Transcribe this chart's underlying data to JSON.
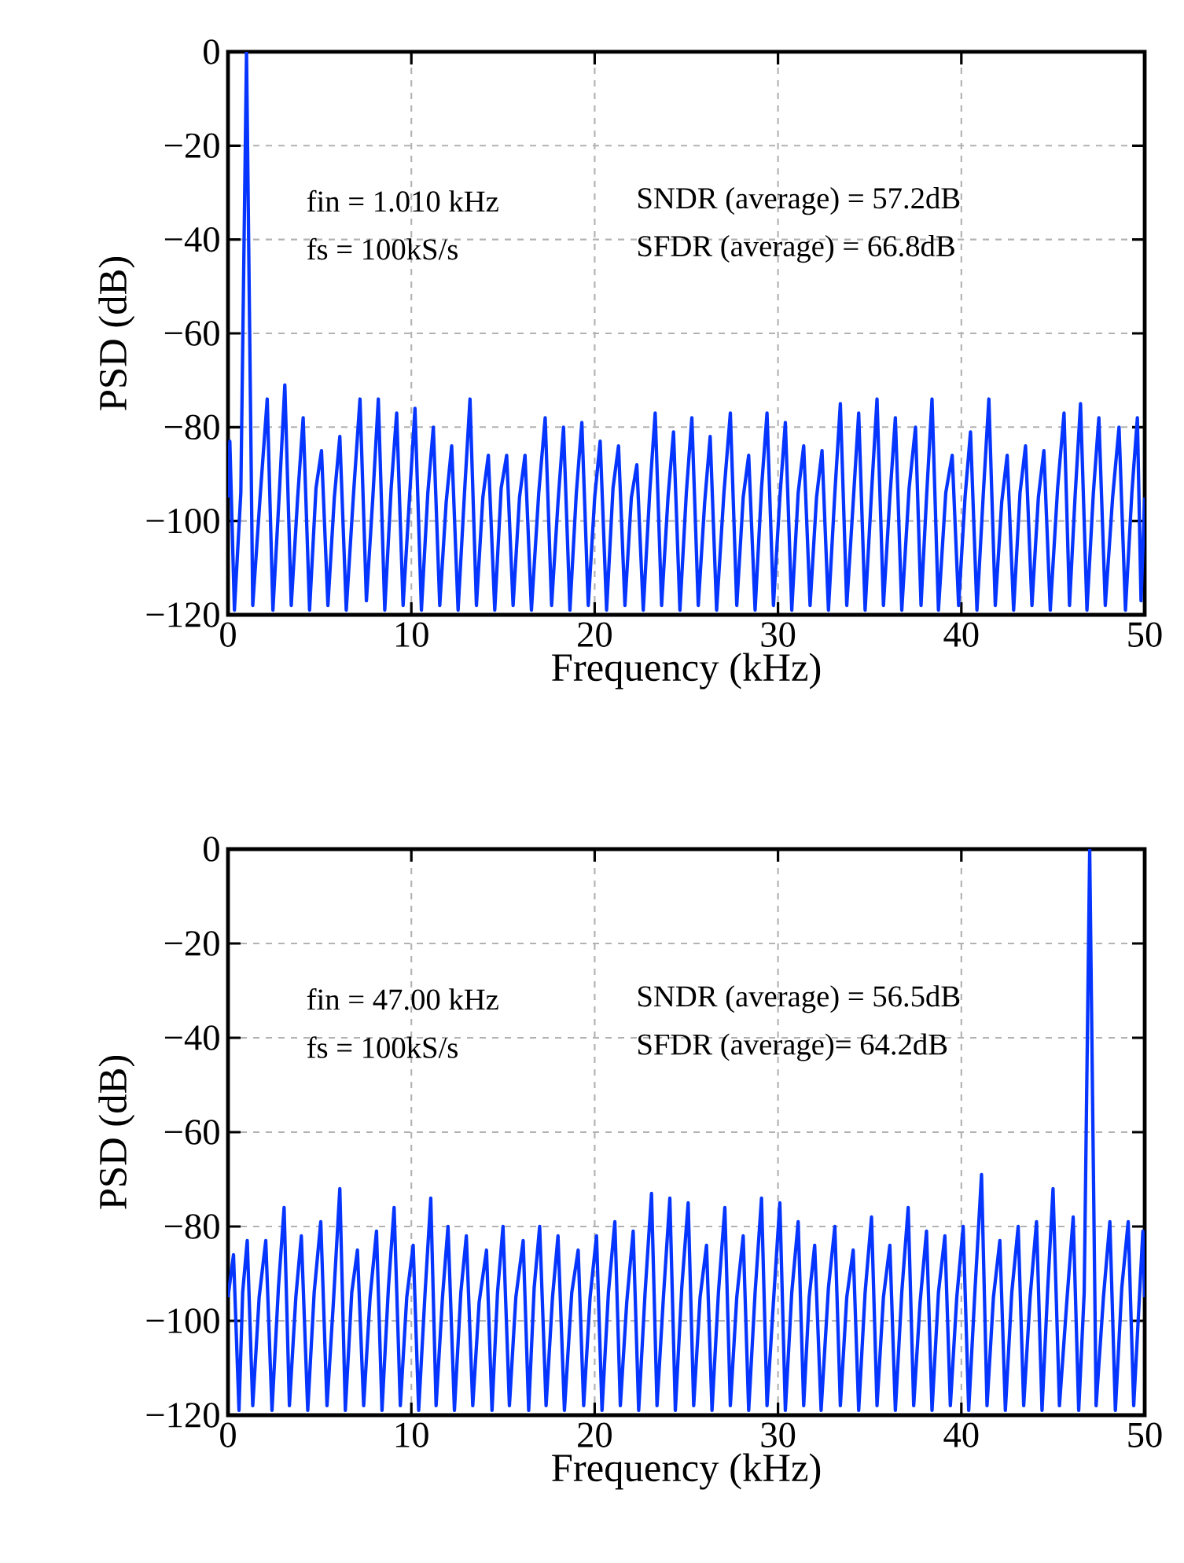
{
  "chart_data": [
    {
      "type": "line",
      "xlabel": "Frequency (kHz)",
      "ylabel": "PSD (dB)",
      "color": "#0535ff",
      "grid": true,
      "xlim": [
        0,
        50
      ],
      "ylim": [
        -120,
        0
      ],
      "xticks": [
        0,
        10,
        20,
        30,
        40,
        50
      ],
      "yticks": [
        {
          "value": -120,
          "label": "−120"
        },
        {
          "value": -100,
          "label": "−100"
        },
        {
          "value": -80,
          "label": "−80"
        },
        {
          "value": -60,
          "label": "−60"
        },
        {
          "value": -40,
          "label": "−40"
        },
        {
          "value": -20,
          "label": "−20"
        },
        0
      ],
      "annotations": [
        "fin = 1.010 kHz",
        "SNDR (average) = 57.2dB",
        "fs  = 100kS/s",
        "SFDR (average) = 66.8dB"
      ],
      "x": [
        0,
        0.1,
        0.35,
        0.7,
        1.01,
        1.35,
        1.75,
        2.14,
        2.45,
        2.8,
        3.1,
        3.45,
        3.8,
        4.1,
        4.45,
        4.8,
        5.1,
        5.45,
        5.8,
        6.1,
        6.45,
        6.85,
        7.2,
        7.55,
        7.9,
        8.2,
        8.55,
        8.9,
        9.2,
        9.55,
        9.9,
        10.2,
        10.55,
        10.9,
        11.2,
        11.55,
        11.9,
        12.2,
        12.55,
        12.9,
        13.2,
        13.55,
        13.9,
        14.2,
        14.55,
        14.9,
        15.2,
        15.55,
        15.9,
        16.2,
        16.55,
        16.95,
        17.3,
        17.65,
        18.0,
        18.3,
        18.65,
        19.0,
        19.3,
        19.65,
        20.0,
        20.3,
        20.65,
        21.0,
        21.3,
        21.65,
        22.0,
        22.3,
        22.65,
        23.0,
        23.3,
        23.65,
        24.0,
        24.3,
        24.65,
        25.0,
        25.3,
        25.65,
        26.0,
        26.3,
        26.65,
        27.05,
        27.4,
        27.75,
        28.1,
        28.4,
        28.75,
        29.1,
        29.4,
        29.75,
        30.1,
        30.4,
        30.75,
        31.1,
        31.4,
        31.75,
        32.1,
        32.4,
        32.75,
        33.1,
        33.4,
        33.75,
        34.1,
        34.4,
        34.75,
        35.1,
        35.4,
        35.75,
        36.1,
        36.4,
        36.75,
        37.15,
        37.5,
        37.8,
        38.1,
        38.4,
        38.75,
        39.15,
        39.5,
        39.85,
        40.2,
        40.5,
        40.85,
        41.2,
        41.5,
        41.85,
        42.2,
        42.5,
        42.85,
        43.2,
        43.5,
        43.85,
        44.2,
        44.5,
        44.85,
        45.25,
        45.6,
        45.9,
        46.2,
        46.5,
        46.85,
        47.2,
        47.5,
        47.85,
        48.25,
        48.6,
        48.95,
        49.3,
        49.6,
        49.8,
        50
      ],
      "values": [
        -95,
        -83,
        -119,
        -94,
        0,
        -118,
        -95,
        -74,
        -119,
        -94,
        -71,
        -118,
        -95,
        -78,
        -119,
        -93,
        -85,
        -118,
        -95,
        -82,
        -119,
        -94,
        -74,
        -117,
        -95,
        -74,
        -119,
        -93,
        -77,
        -118,
        -95,
        -76,
        -119,
        -94,
        -80,
        -118,
        -96,
        -84,
        -119,
        -94,
        -74,
        -118,
        -95,
        -86,
        -119,
        -93,
        -86,
        -118,
        -95,
        -86,
        -119,
        -94,
        -78,
        -118,
        -96,
        -80,
        -119,
        -94,
        -79,
        -118,
        -95,
        -83,
        -119,
        -93,
        -84,
        -118,
        -95,
        -88,
        -119,
        -94,
        -77,
        -118,
        -95,
        -81,
        -119,
        -94,
        -78,
        -118,
        -96,
        -82,
        -119,
        -94,
        -77,
        -118,
        -95,
        -86,
        -119,
        -93,
        -77,
        -118,
        -95,
        -79,
        -119,
        -94,
        -84,
        -118,
        -95,
        -85,
        -119,
        -94,
        -75,
        -118,
        -96,
        -77,
        -119,
        -94,
        -74,
        -118,
        -95,
        -78,
        -119,
        -93,
        -80,
        -118,
        -95,
        -74,
        -119,
        -94,
        -86,
        -118,
        -95,
        -81,
        -119,
        -94,
        -74,
        -118,
        -96,
        -86,
        -119,
        -94,
        -84,
        -118,
        -95,
        -85,
        -119,
        -93,
        -77,
        -118,
        -95,
        -75,
        -119,
        -94,
        -78,
        -118,
        -95,
        -80,
        -119,
        -94,
        -78,
        -117,
        -95
      ]
    },
    {
      "type": "line",
      "xlabel": "Frequency (kHz)",
      "ylabel": "PSD (dB)",
      "color": "#0535ff",
      "grid": true,
      "xlim": [
        0,
        50
      ],
      "ylim": [
        -120,
        0
      ],
      "xticks": [
        0,
        10,
        20,
        30,
        40,
        50
      ],
      "yticks": [
        {
          "value": -120,
          "label": "−120"
        },
        {
          "value": -100,
          "label": "−100"
        },
        {
          "value": -80,
          "label": "−80"
        },
        {
          "value": -60,
          "label": "−60"
        },
        {
          "value": -40,
          "label": "−40"
        },
        {
          "value": -20,
          "label": "−20"
        },
        0
      ],
      "annotations": [
        "fin = 47.00 kHz",
        "SNDR (average) = 56.5dB",
        "fs  = 100kS/s",
        "SFDR (average)= 64.2dB"
      ],
      "x": [
        0,
        0.3,
        0.6,
        0.8,
        1.05,
        1.35,
        1.7,
        2.06,
        2.4,
        2.75,
        3.06,
        3.35,
        3.7,
        4.0,
        4.35,
        4.7,
        5.06,
        5.4,
        5.75,
        6.1,
        6.4,
        6.75,
        7.06,
        7.4,
        7.75,
        8.1,
        8.4,
        8.75,
        9.06,
        9.4,
        9.75,
        10.1,
        10.4,
        10.75,
        11.06,
        11.35,
        11.7,
        12.0,
        12.35,
        12.7,
        13.0,
        13.35,
        13.7,
        14.1,
        14.4,
        14.7,
        15.0,
        15.35,
        15.7,
        16.1,
        16.4,
        16.7,
        17.0,
        17.35,
        17.7,
        18.0,
        18.35,
        18.75,
        19.1,
        19.4,
        19.75,
        20.1,
        20.4,
        20.75,
        21.1,
        21.4,
        21.75,
        22.1,
        22.4,
        22.75,
        23.1,
        23.4,
        23.75,
        24.1,
        24.4,
        24.75,
        25.1,
        25.4,
        25.75,
        26.1,
        26.4,
        26.75,
        27.1,
        27.4,
        27.75,
        28.1,
        28.4,
        28.75,
        29.1,
        29.4,
        29.75,
        30.1,
        30.4,
        30.75,
        31.1,
        31.4,
        31.7,
        32.0,
        32.35,
        32.75,
        33.1,
        33.4,
        33.75,
        34.1,
        34.4,
        34.75,
        35.1,
        35.4,
        35.75,
        36.1,
        36.4,
        36.75,
        37.1,
        37.4,
        37.75,
        38.1,
        38.4,
        38.75,
        39.1,
        39.4,
        39.75,
        40.1,
        40.4,
        40.75,
        41.1,
        41.4,
        41.75,
        42.1,
        42.4,
        42.75,
        43.1,
        43.4,
        43.75,
        44.1,
        44.4,
        44.7,
        45.0,
        45.35,
        45.75,
        46.1,
        46.4,
        46.7,
        47.0,
        47.35,
        47.75,
        48.1,
        48.4,
        48.75,
        49.1,
        49.4,
        49.9,
        50
      ],
      "values": [
        -95,
        -86,
        -119,
        -94,
        -83,
        -118,
        -95,
        -83,
        -119,
        -93,
        -76,
        -118,
        -95,
        -82,
        -119,
        -94,
        -79,
        -118,
        -96,
        -72,
        -119,
        -94,
        -85,
        -118,
        -95,
        -81,
        -119,
        -93,
        -76,
        -118,
        -95,
        -84,
        -119,
        -94,
        -74,
        -118,
        -95,
        -80,
        -119,
        -94,
        -82,
        -118,
        -96,
        -85,
        -119,
        -94,
        -80,
        -118,
        -95,
        -83,
        -119,
        -93,
        -80,
        -118,
        -95,
        -82,
        -119,
        -94,
        -85,
        -118,
        -95,
        -82,
        -119,
        -94,
        -79,
        -118,
        -96,
        -81,
        -119,
        -94,
        -73,
        -118,
        -95,
        -74,
        -119,
        -93,
        -75,
        -118,
        -95,
        -84,
        -119,
        -94,
        -76,
        -118,
        -95,
        -82,
        -119,
        -94,
        -74,
        -118,
        -96,
        -75,
        -119,
        -94,
        -79,
        -118,
        -95,
        -84,
        -119,
        -93,
        -80,
        -118,
        -95,
        -85,
        -119,
        -94,
        -78,
        -118,
        -95,
        -84,
        -119,
        -94,
        -76,
        -118,
        -96,
        -81,
        -119,
        -94,
        -82,
        -118,
        -95,
        -80,
        -119,
        -93,
        -69,
        -118,
        -95,
        -83,
        -119,
        -94,
        -80,
        -118,
        -95,
        -79,
        -119,
        -94,
        -72,
        -118,
        -96,
        -78,
        -119,
        -94,
        0,
        -118,
        -95,
        -79,
        -119,
        -93,
        -79,
        -118,
        -81,
        -95
      ]
    }
  ]
}
